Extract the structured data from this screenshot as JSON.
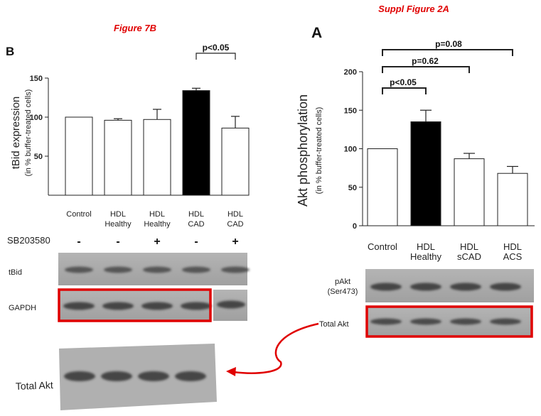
{
  "figure_titles": {
    "left": "Figure 7B",
    "right": "Suppl Figure 2A"
  },
  "chart_data": [
    {
      "type": "bar",
      "panel": "B",
      "categories": [
        [
          "Control"
        ],
        [
          "HDL",
          "Healthy"
        ],
        [
          "HDL",
          "Healthy"
        ],
        [
          "HDL",
          "CAD"
        ],
        [
          "HDL",
          "CAD"
        ]
      ],
      "values": [
        100,
        96,
        97,
        134,
        86
      ],
      "errors": [
        0,
        2,
        13,
        3,
        15
      ],
      "bar_colors": [
        "#ffffff",
        "#ffffff",
        "#ffffff",
        "#000000",
        "#ffffff"
      ],
      "ylabel": "tBid expression",
      "ylabel_sub": "(in % buffer-treated cells)",
      "ylim": [
        0,
        150
      ],
      "yticks": [
        50,
        100,
        150
      ],
      "grid": false,
      "treatment": {
        "label": "SB203580",
        "values": [
          "-",
          "-",
          "+",
          "-",
          "+"
        ]
      },
      "significance": [
        {
          "from": 3,
          "to": 4,
          "label": "p<0.05"
        }
      ]
    },
    {
      "type": "bar",
      "panel": "A",
      "categories": [
        [
          "Control"
        ],
        [
          "HDL",
          "Healthy"
        ],
        [
          "HDL",
          "sCAD"
        ],
        [
          "HDL",
          "ACS"
        ]
      ],
      "values": [
        100,
        135,
        87,
        68
      ],
      "errors": [
        0,
        15,
        7,
        9
      ],
      "bar_colors": [
        "#ffffff",
        "#000000",
        "#ffffff",
        "#ffffff"
      ],
      "ylabel": "Akt phosphorylation",
      "ylabel_sub": "(in % buffer-treated cells)",
      "ylim": [
        0,
        200
      ],
      "yticks": [
        0,
        50,
        100,
        150,
        200
      ],
      "grid": false,
      "significance": [
        {
          "from": 0,
          "to": 1,
          "label": "p<0.05"
        },
        {
          "from": 0,
          "to": 2,
          "label": "p=0.62"
        },
        {
          "from": 0,
          "to": 3,
          "label": "p=0.08"
        }
      ]
    }
  ],
  "blots": {
    "left": [
      {
        "label": "tBid",
        "bands": 5
      },
      {
        "label": "GAPDH",
        "bands": 5,
        "highlight_bands": 4
      }
    ],
    "bottom": {
      "label": "Total Akt",
      "bands": 4
    },
    "right": [
      {
        "label": [
          "pAkt",
          "(Ser473)"
        ],
        "bands": 4
      },
      {
        "label": [
          "Total Akt"
        ],
        "bands": 4,
        "highlight_bands": 4
      }
    ]
  },
  "colors": {
    "highlight": "#e00000",
    "blot_bg": "#a9a9a9",
    "band": "#3a3a3a"
  }
}
